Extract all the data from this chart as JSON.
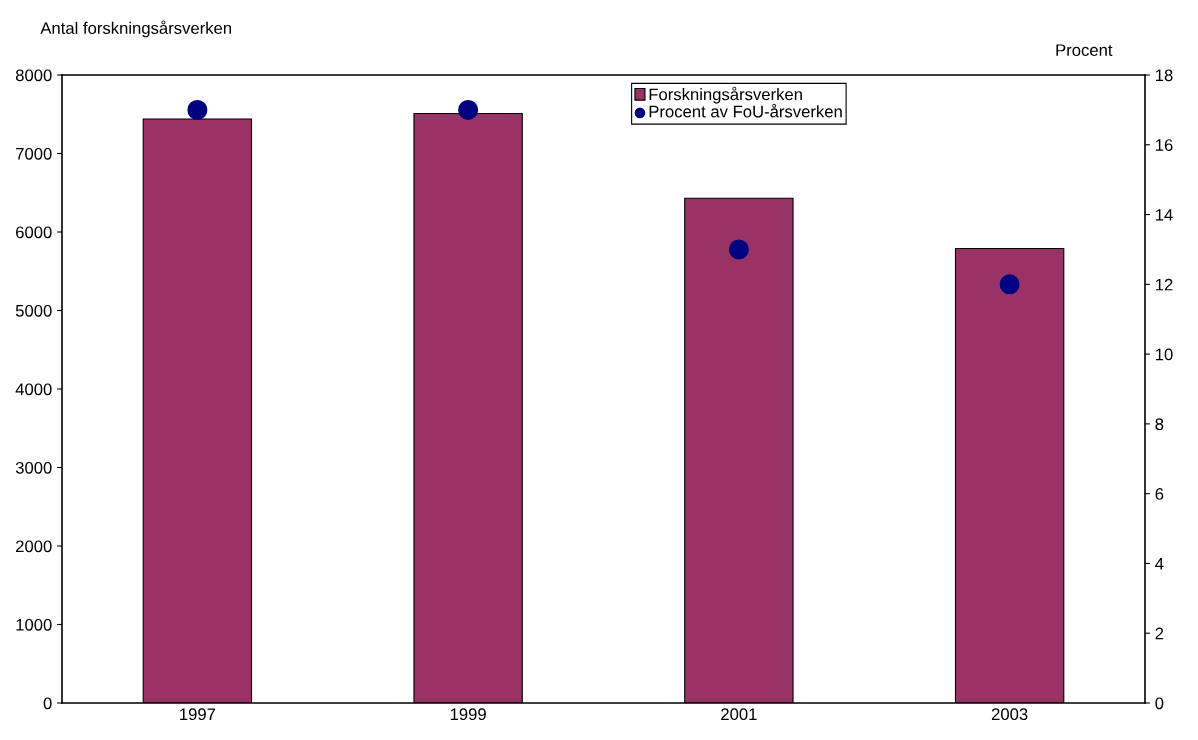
{
  "chart_data": {
    "type": "bar",
    "ylabel": "Antal forskningsårsverken",
    "y2label": "Procent",
    "categories": [
      "1997",
      "1999",
      "2001",
      "2003"
    ],
    "series": [
      {
        "name": "Forskningsårsverken",
        "color": "#993366",
        "values": [
          7440,
          7510,
          6430,
          5790
        ]
      },
      {
        "name": "Procent av FoU-årsverken",
        "type": "scatter",
        "axis": "y2",
        "color": "#000080",
        "values": [
          17,
          17,
          13,
          12
        ]
      }
    ],
    "ylim": [
      0,
      8000
    ],
    "yticks": [
      0,
      1000,
      2000,
      3000,
      4000,
      5000,
      6000,
      7000,
      8000
    ],
    "y2lim": [
      0,
      18
    ],
    "y2ticks": [
      0,
      2,
      4,
      6,
      8,
      10,
      12,
      14,
      16,
      18
    ],
    "grid": false,
    "legend": "top",
    "marker": "circle"
  }
}
